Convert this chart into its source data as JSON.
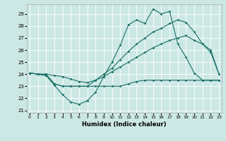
{
  "xlabel": "Humidex (Indice chaleur)",
  "bg_color": "#cce8e4",
  "line_color": "#1a7068",
  "grid_color": "#ffffff",
  "ylim": [
    20.8,
    29.8
  ],
  "xlim": [
    -0.3,
    23.3
  ],
  "yticks": [
    21,
    22,
    23,
    24,
    25,
    26,
    27,
    28,
    29
  ],
  "xticks": [
    0,
    1,
    2,
    3,
    4,
    5,
    6,
    7,
    8,
    9,
    10,
    11,
    12,
    13,
    14,
    15,
    16,
    17,
    18,
    19,
    20,
    21,
    22,
    23
  ],
  "series": [
    [
      24.1,
      24.0,
      23.9,
      23.1,
      22.3,
      21.7,
      21.5,
      21.8,
      22.5,
      23.8,
      25.0,
      26.4,
      28.1,
      28.5,
      28.2,
      29.4,
      29.0,
      29.2,
      26.5,
      25.4,
      24.1,
      23.5,
      23.5,
      23.5
    ],
    [
      24.1,
      24.0,
      23.9,
      23.2,
      23.0,
      23.0,
      23.0,
      23.0,
      23.5,
      24.0,
      24.5,
      25.2,
      25.9,
      26.5,
      27.0,
      27.5,
      27.8,
      28.2,
      28.5,
      28.3,
      27.5,
      26.5,
      25.8,
      24.0
    ],
    [
      24.1,
      24.0,
      24.0,
      23.9,
      23.8,
      23.6,
      23.4,
      23.3,
      23.5,
      23.8,
      24.2,
      24.6,
      25.0,
      25.4,
      25.8,
      26.2,
      26.5,
      26.8,
      27.0,
      27.2,
      26.8,
      26.5,
      26.0,
      24.0
    ],
    [
      24.1,
      24.0,
      24.0,
      23.2,
      23.0,
      23.0,
      23.0,
      23.0,
      23.0,
      23.0,
      23.0,
      23.0,
      23.2,
      23.4,
      23.5,
      23.5,
      23.5,
      23.5,
      23.5,
      23.5,
      23.5,
      23.5,
      23.5,
      23.5
    ]
  ]
}
